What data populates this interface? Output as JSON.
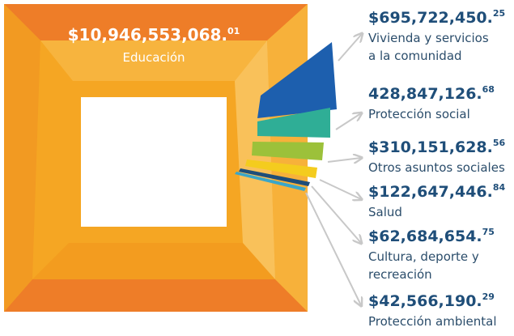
{
  "center": {
    "amount": "$10,946,553,068.",
    "cents": "01",
    "label": "Educación"
  },
  "items": [
    {
      "amount": "$695,722,450.",
      "cents": "25",
      "label": [
        "Vivienda y servicios",
        "a la comunidad"
      ]
    },
    {
      "amount": "428,847,126.",
      "cents": "68",
      "label": [
        "Protección social"
      ]
    },
    {
      "amount": "$310,151,628.",
      "cents": "56",
      "label": [
        "Otros asuntos sociales"
      ]
    },
    {
      "amount": "$122,647,446.",
      "cents": "84",
      "label": [
        "Salud"
      ]
    },
    {
      "amount": "$62,684,654.",
      "cents": "75",
      "label": [
        "Cultura, deporte y",
        "recreación"
      ]
    },
    {
      "amount": "$42,566,190.",
      "cents": "29",
      "label": [
        "Protección ambiental"
      ]
    }
  ]
}
